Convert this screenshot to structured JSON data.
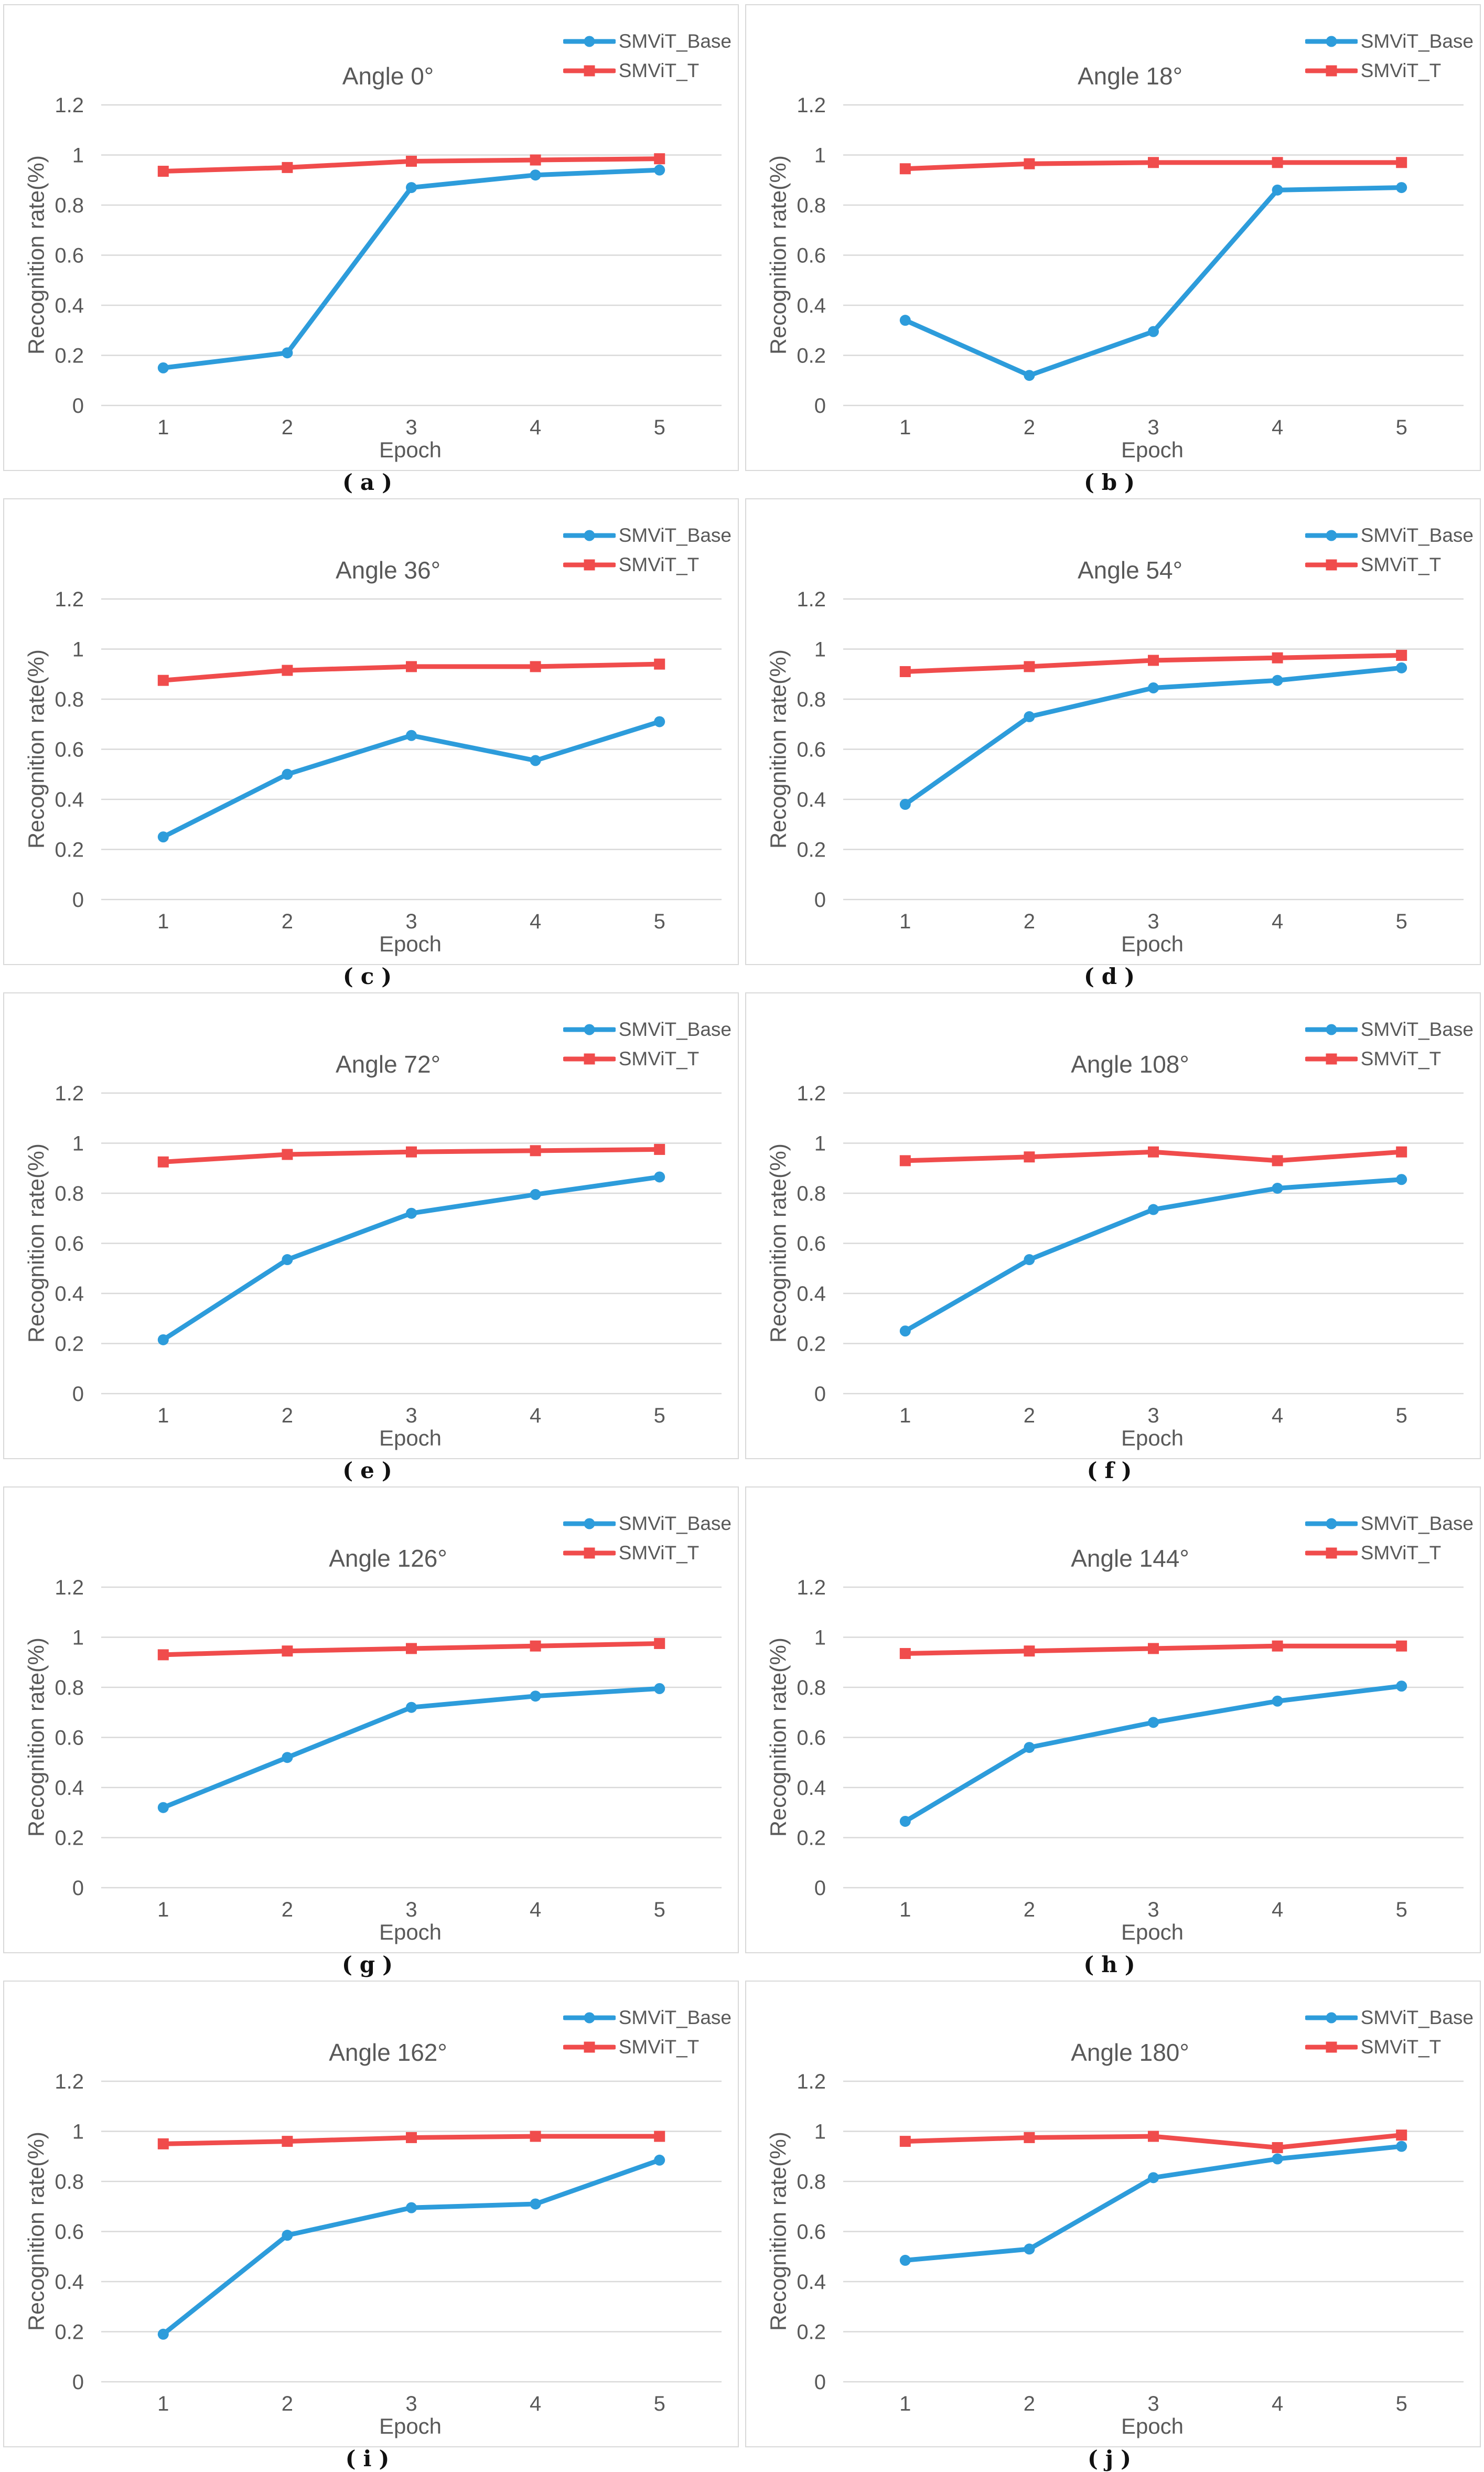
{
  "colors": {
    "grid": "#d9d9d9",
    "panel_border": "#d9d9d9",
    "text": "#595959",
    "caption": "#111111",
    "series_base": "#2D9CDB",
    "series_t": "#F04C4C"
  },
  "chart_data": [
    {
      "type": "line",
      "title": "Angle 0°",
      "subplot_label": "(a)",
      "x": [
        "1",
        "2",
        "3",
        "4",
        "5"
      ],
      "xlabel": "Epoch",
      "ylabel": "Recognition rate(%)",
      "ylim": [
        0,
        1.2
      ],
      "ytick_labels": [
        "0",
        "0.2",
        "0.4",
        "0.6",
        "0.8",
        "1",
        "1.2"
      ],
      "grid": true,
      "legend_position": "top-right",
      "series": [
        {
          "name": "SMViT_Base",
          "color": "#2D9CDB",
          "marker": "circle",
          "values": [
            0.15,
            0.21,
            0.87,
            0.92,
            0.94
          ]
        },
        {
          "name": "SMViT_T",
          "color": "#F04C4C",
          "marker": "square",
          "values": [
            0.935,
            0.95,
            0.975,
            0.98,
            0.985
          ]
        }
      ]
    },
    {
      "type": "line",
      "title": "Angle 18°",
      "subplot_label": "(b)",
      "x": [
        "1",
        "2",
        "3",
        "4",
        "5"
      ],
      "xlabel": "Epoch",
      "ylabel": "Recognition rate(%)",
      "ylim": [
        0,
        1.2
      ],
      "ytick_labels": [
        "0",
        "0.2",
        "0.4",
        "0.6",
        "0.8",
        "1",
        "1.2"
      ],
      "grid": true,
      "legend_position": "top-right",
      "series": [
        {
          "name": "SMViT_Base",
          "color": "#2D9CDB",
          "marker": "circle",
          "values": [
            0.34,
            0.12,
            0.295,
            0.86,
            0.87
          ]
        },
        {
          "name": "SMViT_T",
          "color": "#F04C4C",
          "marker": "square",
          "values": [
            0.945,
            0.965,
            0.97,
            0.97,
            0.97
          ]
        }
      ]
    },
    {
      "type": "line",
      "title": "Angle 36°",
      "subplot_label": "(c)",
      "x": [
        "1",
        "2",
        "3",
        "4",
        "5"
      ],
      "xlabel": "Epoch",
      "ylabel": "Recognition rate(%)",
      "ylim": [
        0,
        1.2
      ],
      "ytick_labels": [
        "0",
        "0.2",
        "0.4",
        "0.6",
        "0.8",
        "1",
        "1.2"
      ],
      "grid": true,
      "legend_position": "top-right",
      "series": [
        {
          "name": "SMViT_Base",
          "color": "#2D9CDB",
          "marker": "circle",
          "values": [
            0.25,
            0.5,
            0.655,
            0.555,
            0.71
          ]
        },
        {
          "name": "SMViT_T",
          "color": "#F04C4C",
          "marker": "square",
          "values": [
            0.875,
            0.915,
            0.93,
            0.93,
            0.94
          ]
        }
      ]
    },
    {
      "type": "line",
      "title": "Angle 54°",
      "subplot_label": "(d)",
      "x": [
        "1",
        "2",
        "3",
        "4",
        "5"
      ],
      "xlabel": "Epoch",
      "ylabel": "Recognition rate(%)",
      "ylim": [
        0,
        1.2
      ],
      "ytick_labels": [
        "0",
        "0.2",
        "0.4",
        "0.6",
        "0.8",
        "1",
        "1.2"
      ],
      "grid": true,
      "legend_position": "top-right",
      "series": [
        {
          "name": "SMViT_Base",
          "color": "#2D9CDB",
          "marker": "circle",
          "values": [
            0.38,
            0.73,
            0.845,
            0.875,
            0.925
          ]
        },
        {
          "name": "SMViT_T",
          "color": "#F04C4C",
          "marker": "square",
          "values": [
            0.91,
            0.93,
            0.955,
            0.965,
            0.975
          ]
        }
      ]
    },
    {
      "type": "line",
      "title": "Angle 72°",
      "subplot_label": "(e)",
      "x": [
        "1",
        "2",
        "3",
        "4",
        "5"
      ],
      "xlabel": "Epoch",
      "ylabel": "Recognition rate(%)",
      "ylim": [
        0,
        1.2
      ],
      "ytick_labels": [
        "0",
        "0.2",
        "0.4",
        "0.6",
        "0.8",
        "1",
        "1.2"
      ],
      "grid": true,
      "legend_position": "top-right",
      "series": [
        {
          "name": "SMViT_Base",
          "color": "#2D9CDB",
          "marker": "circle",
          "values": [
            0.215,
            0.535,
            0.72,
            0.795,
            0.865
          ]
        },
        {
          "name": "SMViT_T",
          "color": "#F04C4C",
          "marker": "square",
          "values": [
            0.925,
            0.955,
            0.965,
            0.97,
            0.975
          ]
        }
      ]
    },
    {
      "type": "line",
      "title": "Angle 108°",
      "subplot_label": "(f)",
      "x": [
        "1",
        "2",
        "3",
        "4",
        "5"
      ],
      "xlabel": "Epoch",
      "ylabel": "Recognition rate(%)",
      "ylim": [
        0,
        1.2
      ],
      "ytick_labels": [
        "0",
        "0.2",
        "0.4",
        "0.6",
        "0.8",
        "1",
        "1.2"
      ],
      "grid": true,
      "legend_position": "top-right",
      "series": [
        {
          "name": "SMViT_Base",
          "color": "#2D9CDB",
          "marker": "circle",
          "values": [
            0.25,
            0.535,
            0.735,
            0.82,
            0.855
          ]
        },
        {
          "name": "SMViT_T",
          "color": "#F04C4C",
          "marker": "square",
          "values": [
            0.93,
            0.945,
            0.965,
            0.93,
            0.965
          ]
        }
      ]
    },
    {
      "type": "line",
      "title": "Angle 126°",
      "subplot_label": "(g)",
      "x": [
        "1",
        "2",
        "3",
        "4",
        "5"
      ],
      "xlabel": "Epoch",
      "ylabel": "Recognition rate(%)",
      "ylim": [
        0,
        1.2
      ],
      "ytick_labels": [
        "0",
        "0.2",
        "0.4",
        "0.6",
        "0.8",
        "1",
        "1.2"
      ],
      "grid": true,
      "legend_position": "top-right",
      "series": [
        {
          "name": "SMViT_Base",
          "color": "#2D9CDB",
          "marker": "circle",
          "values": [
            0.32,
            0.52,
            0.72,
            0.765,
            0.795
          ]
        },
        {
          "name": "SMViT_T",
          "color": "#F04C4C",
          "marker": "square",
          "values": [
            0.93,
            0.945,
            0.955,
            0.965,
            0.975
          ]
        }
      ]
    },
    {
      "type": "line",
      "title": "Angle 144°",
      "subplot_label": "(h)",
      "x": [
        "1",
        "2",
        "3",
        "4",
        "5"
      ],
      "xlabel": "Epoch",
      "ylabel": "Recognition rate(%)",
      "ylim": [
        0,
        1.2
      ],
      "ytick_labels": [
        "0",
        "0.2",
        "0.4",
        "0.6",
        "0.8",
        "1",
        "1.2"
      ],
      "grid": true,
      "legend_position": "top-right",
      "series": [
        {
          "name": "SMViT_Base",
          "color": "#2D9CDB",
          "marker": "circle",
          "values": [
            0.265,
            0.56,
            0.66,
            0.745,
            0.805
          ]
        },
        {
          "name": "SMViT_T",
          "color": "#F04C4C",
          "marker": "square",
          "values": [
            0.935,
            0.945,
            0.955,
            0.965,
            0.965
          ]
        }
      ]
    },
    {
      "type": "line",
      "title": "Angle 162°",
      "subplot_label": "(i)",
      "x": [
        "1",
        "2",
        "3",
        "4",
        "5"
      ],
      "xlabel": "Epoch",
      "ylabel": "Recognition rate(%)",
      "ylim": [
        0,
        1.2
      ],
      "ytick_labels": [
        "0",
        "0.2",
        "0.4",
        "0.6",
        "0.8",
        "1",
        "1.2"
      ],
      "grid": true,
      "legend_position": "top-right",
      "series": [
        {
          "name": "SMViT_Base",
          "color": "#2D9CDB",
          "marker": "circle",
          "values": [
            0.19,
            0.585,
            0.695,
            0.71,
            0.885
          ]
        },
        {
          "name": "SMViT_T",
          "color": "#F04C4C",
          "marker": "square",
          "values": [
            0.95,
            0.96,
            0.975,
            0.98,
            0.98
          ]
        }
      ]
    },
    {
      "type": "line",
      "title": "Angle 180°",
      "subplot_label": "(j)",
      "x": [
        "1",
        "2",
        "3",
        "4",
        "5"
      ],
      "xlabel": "Epoch",
      "ylabel": "Recognition rate(%)",
      "ylim": [
        0,
        1.2
      ],
      "ytick_labels": [
        "0",
        "0.2",
        "0.4",
        "0.6",
        "0.8",
        "1",
        "1.2"
      ],
      "grid": true,
      "legend_position": "top-right",
      "series": [
        {
          "name": "SMViT_Base",
          "color": "#2D9CDB",
          "marker": "circle",
          "values": [
            0.485,
            0.53,
            0.815,
            0.89,
            0.94
          ]
        },
        {
          "name": "SMViT_T",
          "color": "#F04C4C",
          "marker": "square",
          "values": [
            0.96,
            0.975,
            0.98,
            0.935,
            0.985
          ]
        }
      ]
    }
  ]
}
